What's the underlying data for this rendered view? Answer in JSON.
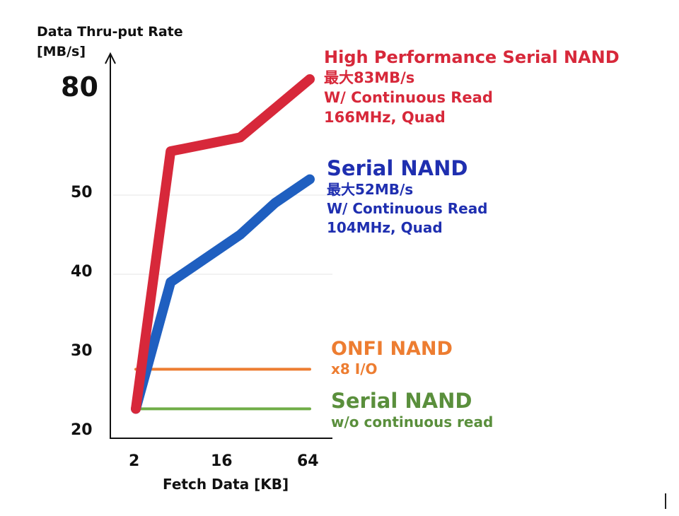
{
  "chart_data": {
    "type": "line",
    "ylabel_lines": [
      "Data Thru-put Rate",
      "[MB/s]"
    ],
    "xlabel": "Fetch Data [KB]",
    "x_ticks": [
      "2",
      "16",
      "64"
    ],
    "y_ticks": [
      "20",
      "30",
      "40",
      "50",
      "80"
    ],
    "y_axis_note": "broken axis between 50 and 80",
    "grid": "horizontal at 40 and 50",
    "series": [
      {
        "name": "High Performance Serial NAND",
        "color": "#d7283a",
        "points": [
          [
            2,
            23
          ],
          [
            4,
            57
          ],
          [
            16,
            62
          ],
          [
            64,
            83
          ]
        ]
      },
      {
        "name": "Serial NAND",
        "color": "#1f5fc0",
        "points": [
          [
            2,
            23
          ],
          [
            4,
            39
          ],
          [
            16,
            45
          ],
          [
            32,
            49
          ],
          [
            64,
            52
          ]
        ]
      },
      {
        "name": "ONFI NAND",
        "color": "#ed7d31",
        "points": [
          [
            2,
            28
          ],
          [
            64,
            28
          ]
        ]
      },
      {
        "name": "Serial NAND",
        "color": "#70ad47",
        "points": [
          [
            2,
            23
          ],
          [
            64,
            23
          ]
        ]
      }
    ],
    "annotations": [
      {
        "color": "#d7283a",
        "lines": [
          "High Performance Serial NAND",
          "最大83MB/s",
          "W/ Continuous Read",
          "166MHz, Quad"
        ]
      },
      {
        "color": "#1f2fb0",
        "lines": [
          "Serial NAND",
          "最大52MB/s",
          "W/ Continuous Read",
          "104MHz, Quad"
        ]
      },
      {
        "color": "#ed7d31",
        "lines": [
          "ONFI NAND",
          "x8 I/O"
        ]
      },
      {
        "color": "#5a8f3c",
        "lines": [
          "Serial NAND",
          "w/o continuous read"
        ]
      }
    ]
  }
}
